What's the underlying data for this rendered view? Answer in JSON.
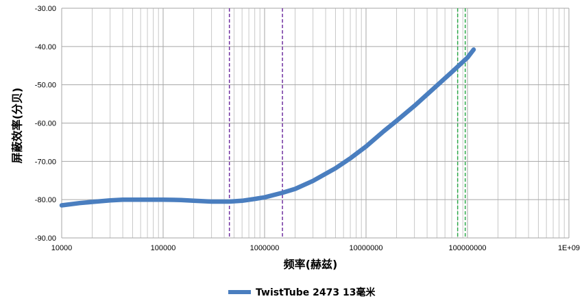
{
  "chart_data": {
    "type": "line",
    "xlabel": "频率(赫兹)",
    "ylabel": "屏蔽效率(分贝)",
    "x_scale": "log",
    "xlim": [
      10000,
      1000000000
    ],
    "ylim": [
      -90,
      -30
    ],
    "x_ticks": [
      {
        "value": 10000,
        "label": "10000"
      },
      {
        "value": 100000,
        "label": "100000"
      },
      {
        "value": 1000000,
        "label": "1000000"
      },
      {
        "value": 10000000,
        "label": "10000000"
      },
      {
        "value": 100000000,
        "label": "100000000"
      },
      {
        "value": 1000000000,
        "label": "1E+09"
      }
    ],
    "y_ticks": [
      {
        "value": -30,
        "label": "-30.00"
      },
      {
        "value": -40,
        "label": "-40.00"
      },
      {
        "value": -50,
        "label": "-50.00"
      },
      {
        "value": -60,
        "label": "-60.00"
      },
      {
        "value": -70,
        "label": "-70.00"
      },
      {
        "value": -80,
        "label": "-80.00"
      },
      {
        "value": -90,
        "label": "-90.00"
      }
    ],
    "grid": true,
    "legend_position": "bottom",
    "series": [
      {
        "name": "TwistTube 2473 13毫米",
        "color": "#4a7ebf",
        "x": [
          10000,
          15000,
          20000,
          30000,
          40000,
          60000,
          100000,
          150000,
          200000,
          300000,
          450000,
          600000,
          800000,
          1000000,
          1500000,
          2000000,
          3000000,
          5000000,
          7000000,
          10000000,
          15000000,
          20000000,
          30000000,
          50000000,
          70000000,
          100000000,
          115000000
        ],
        "values": [
          -81.5,
          -80.9,
          -80.6,
          -80.2,
          -80.0,
          -80.0,
          -80.0,
          -80.1,
          -80.3,
          -80.5,
          -80.5,
          -80.3,
          -79.8,
          -79.4,
          -78.2,
          -77.2,
          -75.1,
          -71.8,
          -69.2,
          -66.1,
          -62.1,
          -59.4,
          -55.5,
          -50.2,
          -46.7,
          -42.9,
          -40.8
        ]
      }
    ],
    "markers": [
      {
        "x": 450000,
        "color": "#7030a0"
      },
      {
        "x": 1500000,
        "color": "#7030a0"
      },
      {
        "x": 80000000,
        "color": "#2eaa4a"
      },
      {
        "x": 95000000,
        "color": "#2eaa4a"
      }
    ]
  }
}
